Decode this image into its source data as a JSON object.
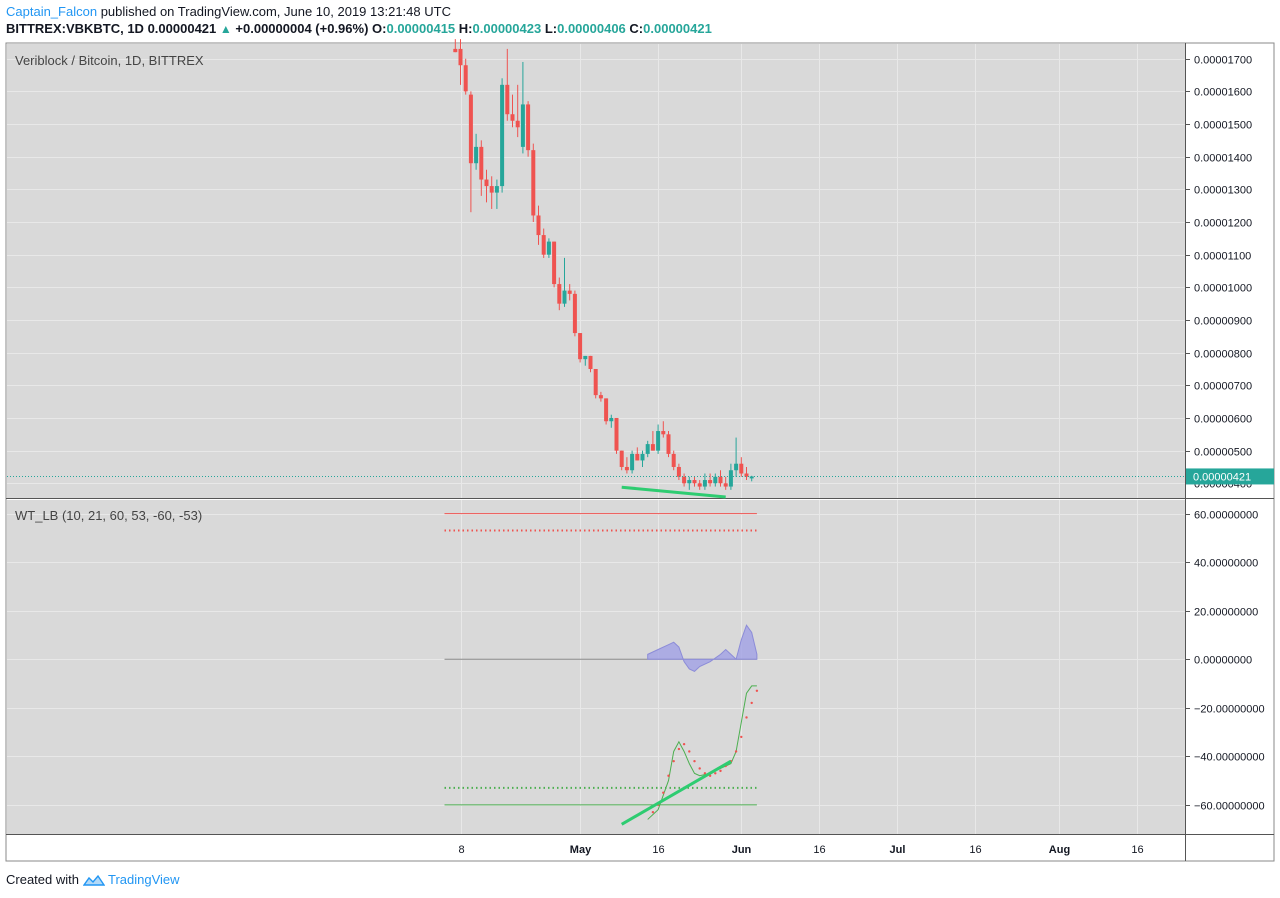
{
  "header": {
    "author": "Captain_Falcon",
    "published_text": "published on TradingView.com, June 10, 2019 13:21:48 UTC",
    "symbol": "BITTREX:VBKBTC, 1D",
    "last": "0.00000421",
    "change": "+0.00000004 (+0.96%)",
    "o_label": "O:",
    "o_value": "0.00000415",
    "h_label": "H:",
    "h_value": "0.00000423",
    "l_label": "L:",
    "l_value": "0.00000406",
    "c_label": "C:",
    "c_value": "0.00000421",
    "up_arrow": "▲"
  },
  "footer": {
    "created_with": "Created with",
    "brand": "TradingView",
    "logo_icon": "tradingview-logo-icon"
  },
  "colors": {
    "up": "#26a69a",
    "down": "#ef5350",
    "bg": "#d9d9d9",
    "grid": "#e8e8e8",
    "axis_text": "#131722",
    "price_label_bg": "#26a69a",
    "wt_fill": "#9c9ce6",
    "wt_line": "#4caf50",
    "ob": "#ef5350",
    "os": "#4caf50",
    "trend": "#2ecc71"
  },
  "chart_data": [
    {
      "type": "candlestick",
      "title": "Veriblock / Bitcoin, 1D, BITTREX",
      "ylim": [
        3.55e-06,
        1.745e-05
      ],
      "y_ticks": [
        "0.00001700",
        "0.00001600",
        "0.00001500",
        "0.00001400",
        "0.00001300",
        "0.00001200",
        "0.00001100",
        "0.00001000",
        "0.00000900",
        "0.00000800",
        "0.00000700",
        "0.00000600",
        "0.00000500",
        "0.00000400"
      ],
      "current_price": "0.00000421",
      "x_ticks": [
        {
          "label": "8",
          "day": 38,
          "bold": false
        },
        {
          "label": "May",
          "day": 61,
          "bold": true
        },
        {
          "label": "16",
          "day": 76,
          "bold": false
        },
        {
          "label": "Jun",
          "day": 92,
          "bold": true
        },
        {
          "label": "16",
          "day": 107,
          "bold": false
        },
        {
          "label": "Jul",
          "day": 122,
          "bold": true
        },
        {
          "label": "16",
          "day": 137,
          "bold": false
        },
        {
          "label": "Aug",
          "day": 153,
          "bold": true
        },
        {
          "label": "16",
          "day": 168,
          "bold": false
        }
      ],
      "candles": [
        {
          "day": 37,
          "o": 17.3,
          "h": 17.6,
          "l": 17.2,
          "c": 17.2
        },
        {
          "day": 38,
          "o": 17.3,
          "h": 17.6,
          "l": 16.2,
          "c": 16.8
        },
        {
          "day": 39,
          "o": 16.8,
          "h": 17.0,
          "l": 15.9,
          "c": 16.0
        },
        {
          "day": 40,
          "o": 15.9,
          "h": 16.0,
          "l": 12.3,
          "c": 13.8
        },
        {
          "day": 41,
          "o": 13.8,
          "h": 14.7,
          "l": 13.6,
          "c": 14.3
        },
        {
          "day": 42,
          "o": 14.3,
          "h": 14.5,
          "l": 12.8,
          "c": 13.3
        },
        {
          "day": 43,
          "o": 13.3,
          "h": 13.6,
          "l": 12.6,
          "c": 13.1
        },
        {
          "day": 44,
          "o": 13.1,
          "h": 13.4,
          "l": 12.4,
          "c": 12.9
        },
        {
          "day": 45,
          "o": 12.9,
          "h": 13.3,
          "l": 12.4,
          "c": 13.1
        },
        {
          "day": 46,
          "o": 13.1,
          "h": 16.4,
          "l": 12.9,
          "c": 16.2
        },
        {
          "day": 47,
          "o": 16.2,
          "h": 17.3,
          "l": 15.1,
          "c": 15.3
        },
        {
          "day": 48,
          "o": 15.3,
          "h": 15.9,
          "l": 14.9,
          "c": 15.1
        },
        {
          "day": 49,
          "o": 15.1,
          "h": 16.2,
          "l": 14.6,
          "c": 14.9
        },
        {
          "day": 50,
          "o": 14.3,
          "h": 16.9,
          "l": 14.1,
          "c": 15.6
        },
        {
          "day": 51,
          "o": 15.6,
          "h": 15.7,
          "l": 14.0,
          "c": 14.2
        },
        {
          "day": 52,
          "o": 14.2,
          "h": 14.4,
          "l": 12.0,
          "c": 12.2
        },
        {
          "day": 53,
          "o": 12.2,
          "h": 12.5,
          "l": 11.3,
          "c": 11.6
        },
        {
          "day": 54,
          "o": 11.6,
          "h": 11.8,
          "l": 10.9,
          "c": 11.0
        },
        {
          "day": 55,
          "o": 11.0,
          "h": 11.5,
          "l": 10.9,
          "c": 11.4
        },
        {
          "day": 56,
          "o": 11.4,
          "h": 11.4,
          "l": 10.0,
          "c": 10.1
        },
        {
          "day": 57,
          "o": 10.1,
          "h": 10.3,
          "l": 9.3,
          "c": 9.5
        },
        {
          "day": 58,
          "o": 9.5,
          "h": 10.9,
          "l": 9.4,
          "c": 9.9
        },
        {
          "day": 59,
          "o": 9.9,
          "h": 10.1,
          "l": 9.6,
          "c": 9.8
        },
        {
          "day": 60,
          "o": 9.8,
          "h": 9.9,
          "l": 8.5,
          "c": 8.6
        },
        {
          "day": 61,
          "o": 8.6,
          "h": 8.6,
          "l": 7.7,
          "c": 7.8
        },
        {
          "day": 62,
          "o": 7.8,
          "h": 7.9,
          "l": 7.6,
          "c": 7.9
        },
        {
          "day": 63,
          "o": 7.9,
          "h": 7.9,
          "l": 7.4,
          "c": 7.5
        },
        {
          "day": 64,
          "o": 7.5,
          "h": 7.5,
          "l": 6.6,
          "c": 6.7
        },
        {
          "day": 65,
          "o": 6.7,
          "h": 6.8,
          "l": 6.5,
          "c": 6.6
        },
        {
          "day": 66,
          "o": 6.6,
          "h": 6.6,
          "l": 5.8,
          "c": 5.9
        },
        {
          "day": 67,
          "o": 5.9,
          "h": 6.1,
          "l": 5.7,
          "c": 6.0
        },
        {
          "day": 68,
          "o": 6.0,
          "h": 6.0,
          "l": 4.9,
          "c": 5.0
        },
        {
          "day": 69,
          "o": 5.0,
          "h": 5.0,
          "l": 4.4,
          "c": 4.5
        },
        {
          "day": 70,
          "o": 4.5,
          "h": 4.8,
          "l": 4.3,
          "c": 4.4
        },
        {
          "day": 71,
          "o": 4.4,
          "h": 5.0,
          "l": 4.3,
          "c": 4.9
        },
        {
          "day": 72,
          "o": 4.9,
          "h": 5.1,
          "l": 4.7,
          "c": 4.7
        },
        {
          "day": 73,
          "o": 4.7,
          "h": 5.0,
          "l": 4.5,
          "c": 4.9
        },
        {
          "day": 74,
          "o": 4.9,
          "h": 5.3,
          "l": 4.8,
          "c": 5.2
        },
        {
          "day": 75,
          "o": 5.2,
          "h": 5.6,
          "l": 5.0,
          "c": 5.0
        },
        {
          "day": 76,
          "o": 5.0,
          "h": 5.8,
          "l": 4.9,
          "c": 5.6
        },
        {
          "day": 77,
          "o": 5.6,
          "h": 5.9,
          "l": 5.4,
          "c": 5.5
        },
        {
          "day": 78,
          "o": 5.5,
          "h": 5.6,
          "l": 4.8,
          "c": 4.9
        },
        {
          "day": 79,
          "o": 4.9,
          "h": 5.0,
          "l": 4.4,
          "c": 4.5
        },
        {
          "day": 80,
          "o": 4.5,
          "h": 4.6,
          "l": 4.1,
          "c": 4.2
        },
        {
          "day": 81,
          "o": 4.2,
          "h": 4.3,
          "l": 3.9,
          "c": 4.0
        },
        {
          "day": 82,
          "o": 4.0,
          "h": 4.2,
          "l": 3.8,
          "c": 4.1
        },
        {
          "day": 83,
          "o": 4.1,
          "h": 4.2,
          "l": 3.9,
          "c": 4.0
        },
        {
          "day": 84,
          "o": 4.0,
          "h": 4.1,
          "l": 3.8,
          "c": 3.9
        },
        {
          "day": 85,
          "o": 3.9,
          "h": 4.3,
          "l": 3.8,
          "c": 4.1
        },
        {
          "day": 86,
          "o": 4.1,
          "h": 4.3,
          "l": 3.9,
          "c": 4.0
        },
        {
          "day": 87,
          "o": 4.0,
          "h": 4.3,
          "l": 3.9,
          "c": 4.2
        },
        {
          "day": 88,
          "o": 4.2,
          "h": 4.4,
          "l": 3.9,
          "c": 4.0
        },
        {
          "day": 89,
          "o": 4.0,
          "h": 4.2,
          "l": 3.8,
          "c": 3.9
        },
        {
          "day": 90,
          "o": 3.9,
          "h": 4.6,
          "l": 3.8,
          "c": 4.4
        },
        {
          "day": 91,
          "o": 4.4,
          "h": 5.4,
          "l": 4.2,
          "c": 4.6
        },
        {
          "day": 92,
          "o": 4.6,
          "h": 4.8,
          "l": 4.2,
          "c": 4.3
        },
        {
          "day": 93,
          "o": 4.3,
          "h": 4.5,
          "l": 4.1,
          "c": 4.2
        },
        {
          "day": 94,
          "o": 4.15,
          "h": 4.23,
          "l": 4.06,
          "c": 4.21
        }
      ],
      "trendline": {
        "from": {
          "day": 69,
          "value": 3.88
        },
        "to": {
          "day": 89,
          "value": 3.58
        }
      }
    },
    {
      "type": "area+line",
      "title": "WT_LB (10, 21, 60, 53, -60, -53)",
      "ylim": [
        -72,
        66
      ],
      "y_ticks": [
        "60.00000000",
        "40.00000000",
        "20.00000000",
        "0.00000000",
        "−20.00000000",
        "−40.00000000",
        "−60.00000000"
      ],
      "levels": {
        "ob1": 60,
        "ob2": 53,
        "os1": -60,
        "os2": -53,
        "zero": 0
      },
      "level_start_day": 38,
      "level_end_day": 95,
      "wt_diff": [
        {
          "day": 74,
          "v": 2
        },
        {
          "day": 76,
          "v": 4
        },
        {
          "day": 78,
          "v": 6
        },
        {
          "day": 79,
          "v": 7
        },
        {
          "day": 80,
          "v": 5
        },
        {
          "day": 81,
          "v": -1
        },
        {
          "day": 82,
          "v": -4
        },
        {
          "day": 83,
          "v": -5
        },
        {
          "day": 84,
          "v": -3
        },
        {
          "day": 86,
          "v": -1
        },
        {
          "day": 88,
          "v": 2
        },
        {
          "day": 89,
          "v": 4
        },
        {
          "day": 90,
          "v": 2
        },
        {
          "day": 91,
          "v": 0
        },
        {
          "day": 92,
          "v": 8
        },
        {
          "day": 93,
          "v": 14
        },
        {
          "day": 94,
          "v": 11
        },
        {
          "day": 95,
          "v": 2
        }
      ],
      "wt1": [
        {
          "day": 74,
          "v": -66
        },
        {
          "day": 76,
          "v": -62
        },
        {
          "day": 78,
          "v": -50
        },
        {
          "day": 79,
          "v": -38
        },
        {
          "day": 80,
          "v": -34
        },
        {
          "day": 81,
          "v": -38
        },
        {
          "day": 82,
          "v": -43
        },
        {
          "day": 83,
          "v": -47
        },
        {
          "day": 84,
          "v": -48
        },
        {
          "day": 86,
          "v": -47
        },
        {
          "day": 88,
          "v": -45
        },
        {
          "day": 89,
          "v": -44
        },
        {
          "day": 90,
          "v": -43
        },
        {
          "day": 91,
          "v": -38
        },
        {
          "day": 92,
          "v": -26
        },
        {
          "day": 93,
          "v": -14
        },
        {
          "day": 94,
          "v": -11
        },
        {
          "day": 95,
          "v": -11
        }
      ],
      "wt2": [
        {
          "day": 75,
          "v": -63
        },
        {
          "day": 76,
          "v": -60
        },
        {
          "day": 77,
          "v": -55
        },
        {
          "day": 78,
          "v": -48
        },
        {
          "day": 79,
          "v": -42
        },
        {
          "day": 80,
          "v": -37
        },
        {
          "day": 81,
          "v": -35
        },
        {
          "day": 82,
          "v": -38
        },
        {
          "day": 83,
          "v": -42
        },
        {
          "day": 84,
          "v": -45
        },
        {
          "day": 85,
          "v": -47
        },
        {
          "day": 86,
          "v": -48
        },
        {
          "day": 87,
          "v": -47
        },
        {
          "day": 88,
          "v": -46
        },
        {
          "day": 89,
          "v": -44
        },
        {
          "day": 90,
          "v": -42
        },
        {
          "day": 91,
          "v": -38
        },
        {
          "day": 92,
          "v": -32
        },
        {
          "day": 93,
          "v": -24
        },
        {
          "day": 94,
          "v": -18
        },
        {
          "day": 95,
          "v": -13
        }
      ],
      "trendline": {
        "from": {
          "day": 69,
          "value": -68
        },
        "to": {
          "day": 90,
          "value": -42
        }
      }
    }
  ]
}
